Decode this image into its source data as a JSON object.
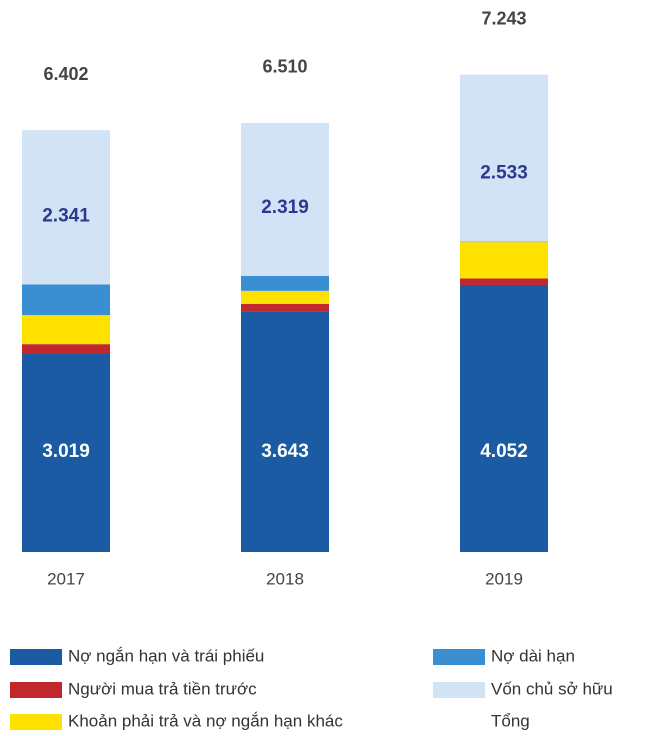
{
  "chart_data": {
    "type": "stacked_bar",
    "categories": [
      "2017",
      "2018",
      "2019"
    ],
    "series": [
      {
        "name": "Nợ ngắn hạn và trái phiếu",
        "color": "#1a5ba3",
        "values": [
          3.019,
          3.643,
          4.052
        ]
      },
      {
        "name": "Người mua trả tiền trước",
        "color": "#c1272d",
        "values": [
          0.135,
          0.12,
          0.1
        ]
      },
      {
        "name": "Khoản phải trả và nợ ngắn hạn khác",
        "color": "#ffe100",
        "values": [
          0.44,
          0.2,
          0.55
        ]
      },
      {
        "name": "Nợ dài hạn",
        "color": "#3a8fd2",
        "values": [
          0.467,
          0.228,
          0.008
        ]
      },
      {
        "name": "Vốn chủ sở hữu",
        "color": "#d2e3f5",
        "values": [
          2.341,
          2.319,
          2.533
        ]
      }
    ],
    "totals": {
      "name": "Tổng",
      "values": [
        6.402,
        6.51,
        7.243
      ],
      "value_labels": [
        "6.402",
        "6.510",
        "7.243"
      ]
    }
  }
}
